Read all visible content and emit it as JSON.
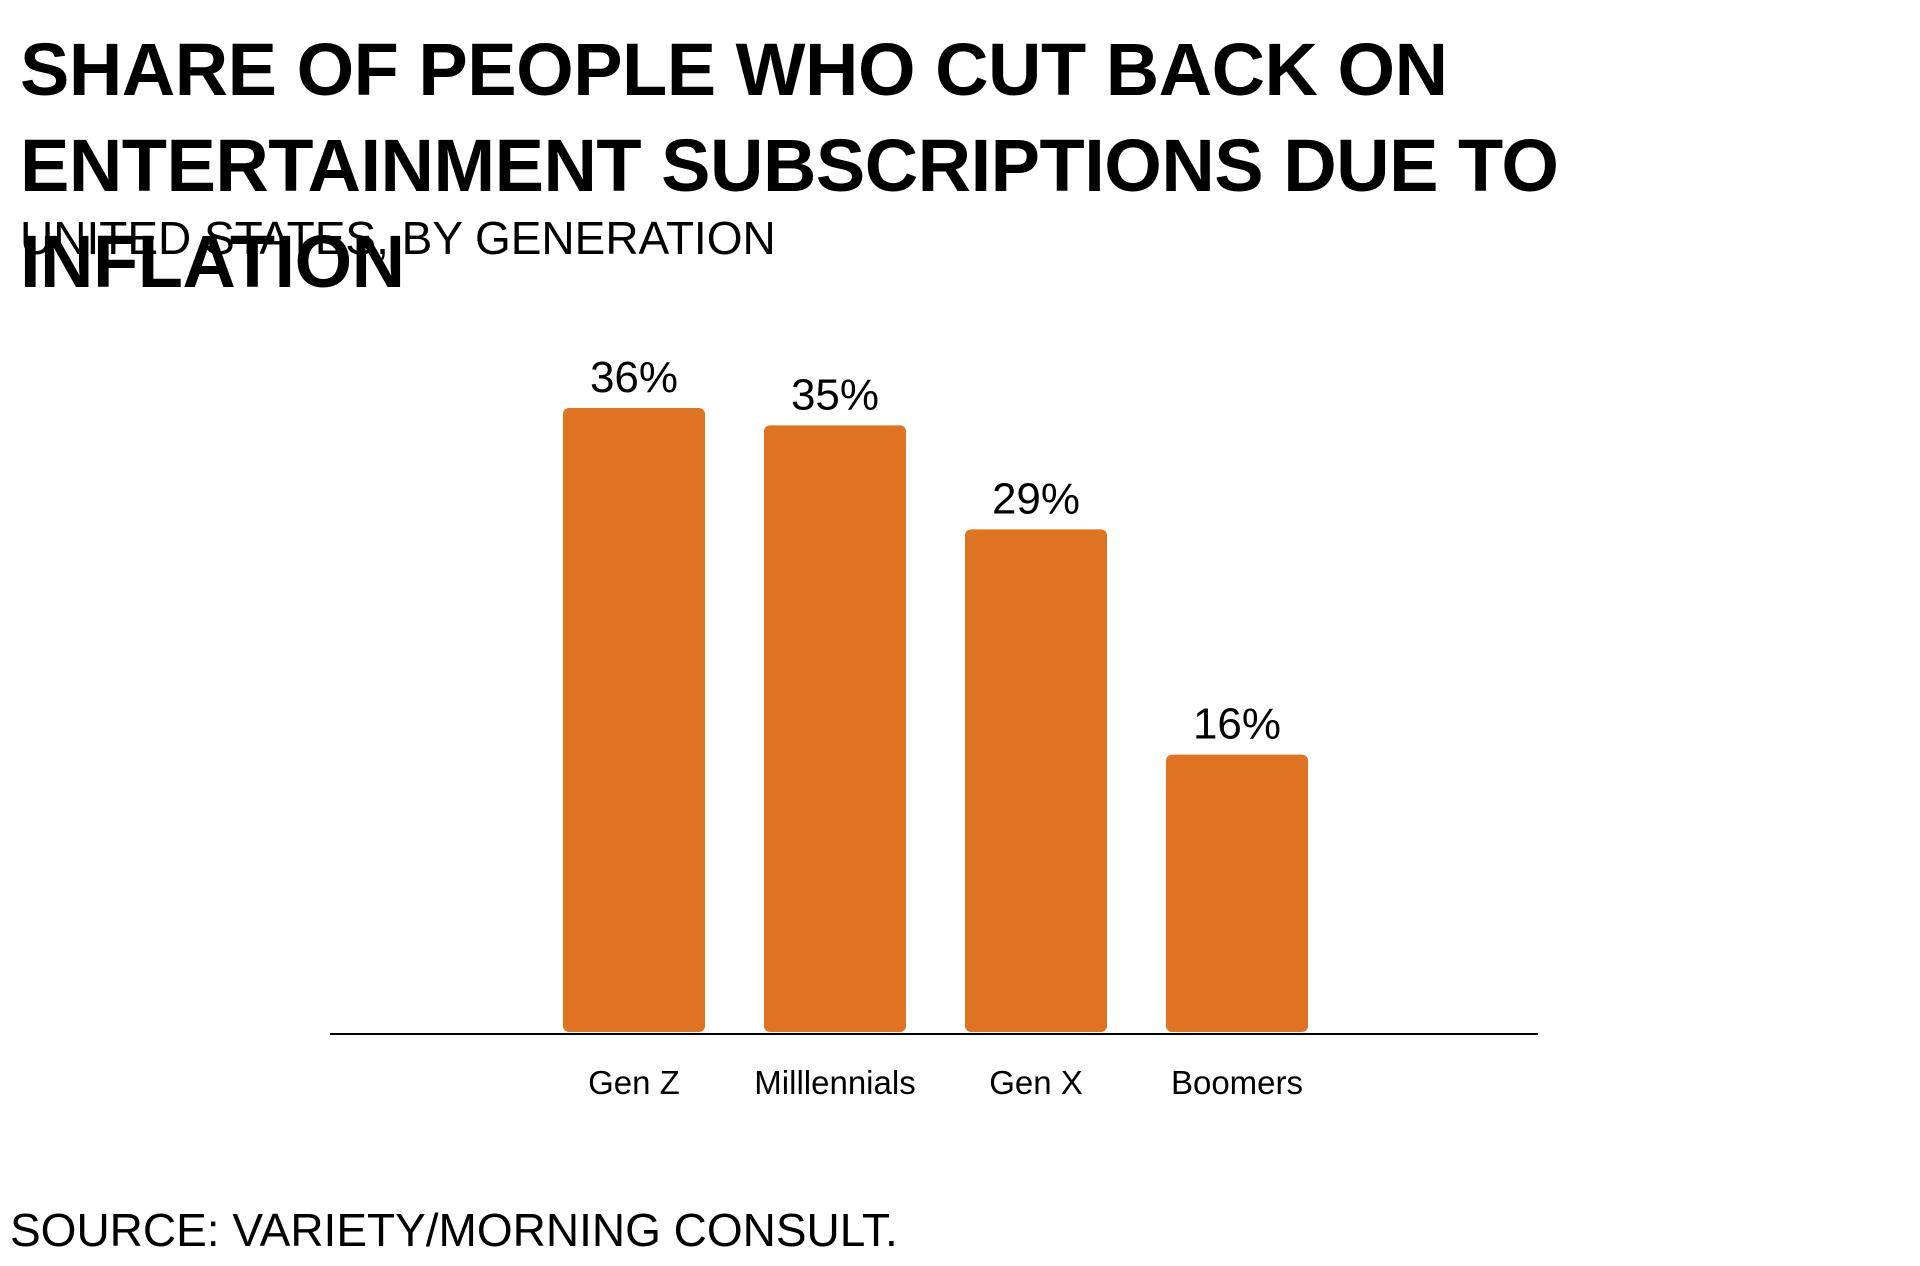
{
  "chart_data": {
    "type": "bar",
    "title": "SHARE OF PEOPLE WHO CUT BACK ON ENTERTAINMENT SUBSCRIPTIONS DUE TO INFLATION",
    "subtitle": "UNITED STATES, BY GENERATION",
    "categories": [
      "Gen Z",
      "Milllennials",
      "Gen X",
      "Boomers"
    ],
    "values": [
      36,
      35,
      29,
      16
    ],
    "data_labels": [
      "36%",
      "35%",
      "29%",
      "16%"
    ],
    "xlabel": "",
    "ylabel": "",
    "ylim": [
      0,
      36
    ],
    "grid": false,
    "legend": "none",
    "bar_color": "#e07322",
    "source": "SOURCE: VARIETY/MORNING CONSULT."
  }
}
